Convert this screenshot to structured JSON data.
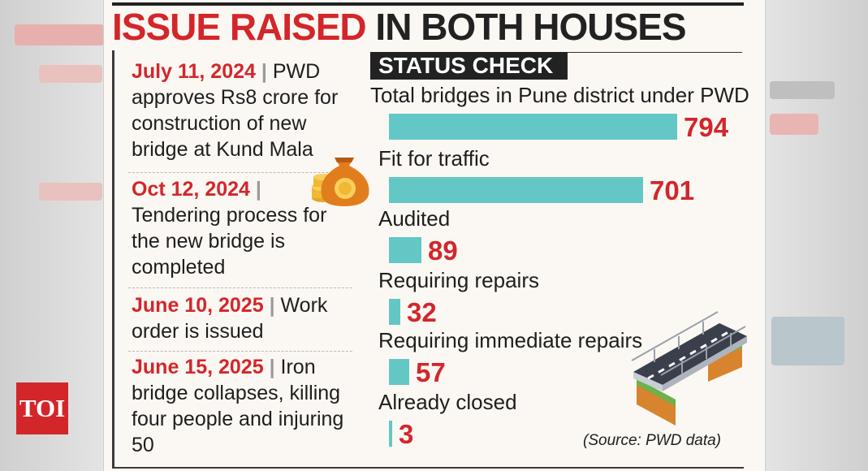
{
  "headline": {
    "part1": "ISSUE RAISED",
    "part2": "IN BOTH HOUSES"
  },
  "timeline": [
    {
      "date": "July 11, 2024",
      "sep": "|",
      "text": "PWD approves Rs8 crore for construction of new bridge at Kund Mala"
    },
    {
      "date": "Oct 12, 2024",
      "sep": "|",
      "text": "Tendering process for the new bridge is completed"
    },
    {
      "date": "June 10, 2025",
      "sep": "|",
      "text": "Work order is issued"
    },
    {
      "date": "June 15, 2025",
      "sep": "|",
      "text": "Iron bridge collapses, killing four people and injuring 50"
    }
  ],
  "status": {
    "tag": "STATUS CHECK",
    "source": "(Source: PWD data)"
  },
  "chart_data": {
    "type": "bar",
    "orientation": "horizontal",
    "categories": [
      "Total bridges in Pune district under PWD",
      "Fit for traffic",
      "Audited",
      "Requiring repairs",
      "Requiring immediate repairs",
      "Already closed"
    ],
    "values": [
      794,
      701,
      89,
      32,
      57,
      3
    ],
    "bar_color": "#63c7c5",
    "value_color": "#d3262b"
  },
  "logo": {
    "text": "TOI"
  },
  "colors": {
    "accent": "#d3262b",
    "bar": "#63c7c5",
    "dark": "#222222"
  },
  "icons": [
    "money-bag-icon",
    "bridge-illustration"
  ]
}
